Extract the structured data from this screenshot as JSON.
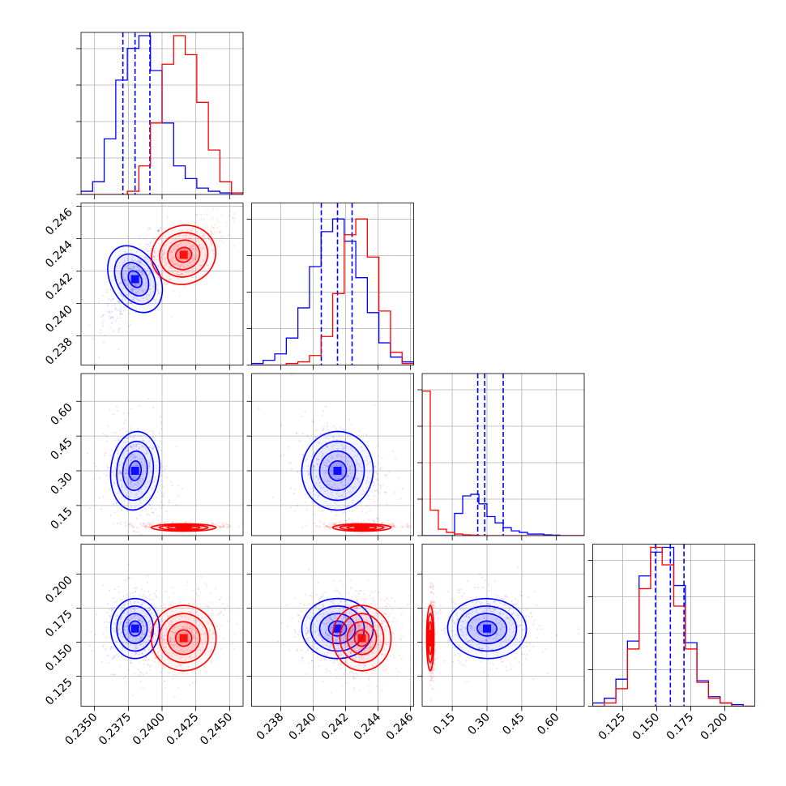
{
  "chart_data": {
    "type": "corner",
    "colors": {
      "blue": "#0000ff",
      "red": "#ff0000",
      "grid": "#b0b0b0",
      "axis": "#000000"
    },
    "parameters": [
      {
        "range": [
          0.234,
          0.246
        ],
        "xticks": [
          "0.2350",
          "0.2375",
          "0.2400",
          "0.2425",
          "0.2450"
        ],
        "xtick_values": [
          0.235,
          0.2375,
          0.24,
          0.2425,
          0.245
        ]
      },
      {
        "range": [
          0.2362,
          0.2462
        ],
        "xticks": [
          "0.238",
          "0.240",
          "0.242",
          "0.244",
          "0.246"
        ],
        "xtick_values": [
          0.238,
          0.24,
          0.242,
          0.244,
          0.246
        ],
        "yticks": [
          "0.238",
          "0.240",
          "0.242",
          "0.244",
          "0.246"
        ],
        "ytick_values": [
          0.238,
          0.24,
          0.242,
          0.244,
          0.246
        ]
      },
      {
        "range": [
          0.02,
          0.72
        ],
        "xticks": [
          "0.15",
          "0.30",
          "0.45",
          "0.60"
        ],
        "xtick_values": [
          0.15,
          0.3,
          0.45,
          0.6
        ],
        "yticks": [
          "0.15",
          "0.30",
          "0.45",
          "0.60"
        ],
        "ytick_values": [
          0.15,
          0.3,
          0.45,
          0.6
        ]
      },
      {
        "range": [
          0.103,
          0.222
        ],
        "xticks": [
          "0.125",
          "0.150",
          "0.175",
          "0.200"
        ],
        "xtick_values": [
          0.125,
          0.15,
          0.175,
          0.2
        ],
        "yticks": [
          "0.125",
          "0.150",
          "0.175",
          "0.200"
        ],
        "ytick_values": [
          0.125,
          0.15,
          0.175,
          0.2
        ]
      }
    ],
    "series": [
      {
        "name": "",
        "color": "#0000ff",
        "means": [
          0.238,
          0.2415,
          0.3,
          0.16
        ],
        "sigmas": [
          0.0009,
          0.0011,
          0.085,
          0.011
        ],
        "quantiles": [
          [
            0.2371,
            0.238,
            0.2391
          ],
          [
            0.2405,
            0.2415,
            0.2424
          ],
          [
            0.26,
            0.29,
            0.37
          ],
          [
            0.149,
            0.16,
            0.17
          ]
        ],
        "hist": [
          [
            0.02,
            0.08,
            0.35,
            0.72,
            0.92,
            1.0,
            0.78,
            0.45,
            0.18,
            0.1,
            0.04,
            0.02,
            0.01,
            0.0
          ],
          [
            0.01,
            0.03,
            0.07,
            0.17,
            0.36,
            0.62,
            0.84,
            0.92,
            0.78,
            0.55,
            0.33,
            0.14,
            0.05,
            0.02
          ],
          [
            0.0,
            0.0,
            0.0,
            0.0,
            0.14,
            0.25,
            0.26,
            0.2,
            0.12,
            0.08,
            0.05,
            0.03,
            0.02,
            0.01,
            0.01,
            0.005,
            0.003,
            0.0,
            0.0,
            0.0
          ],
          [
            0.02,
            0.05,
            0.17,
            0.41,
            0.82,
            0.97,
            1.0,
            0.76,
            0.4,
            0.16,
            0.06,
            0.02,
            0.01,
            0.0
          ]
        ]
      },
      {
        "name": "",
        "color": "#ff0000",
        "means": [
          0.2416,
          0.243,
          0.055,
          0.153
        ],
        "sigmas": [
          0.0012,
          0.0009,
          0.008,
          0.012
        ],
        "quantiles": [],
        "hist": [
          [
            0.0,
            0.0,
            0.0,
            0.0,
            0.02,
            0.18,
            0.45,
            0.82,
            1.0,
            0.88,
            0.58,
            0.28,
            0.08,
            0.01
          ],
          [
            0.0,
            0.0,
            0.0,
            0.01,
            0.02,
            0.06,
            0.18,
            0.45,
            0.82,
            0.92,
            0.68,
            0.34,
            0.08,
            0.01
          ],
          [
            0.91,
            0.16,
            0.04,
            0.02,
            0.01,
            0.005,
            0.003,
            0.0,
            0.0,
            0.0,
            0.0,
            0.0,
            0.0,
            0.0,
            0.0,
            0.0,
            0.0,
            0.0,
            0.0,
            0.0
          ],
          [
            0.0,
            0.02,
            0.11,
            0.36,
            0.74,
            1.0,
            0.89,
            0.63,
            0.36,
            0.15,
            0.05,
            0.02,
            0.0,
            0.0
          ]
        ]
      }
    ],
    "correlations": [
      {
        "i": 1,
        "j": 0,
        "blue": 0.75,
        "red": 0.7
      },
      {
        "i": 2,
        "j": 0,
        "blue": -0.1,
        "red": 0.0
      },
      {
        "i": 2,
        "j": 1,
        "blue": -0.1,
        "red": 0.0
      },
      {
        "i": 3,
        "j": 0,
        "blue": 0.0,
        "red": 0.35
      },
      {
        "i": 3,
        "j": 1,
        "blue": 0.0,
        "red": 0.1
      },
      {
        "i": 3,
        "j": 2,
        "blue": -0.1,
        "red": 0.0
      }
    ],
    "grid": true
  }
}
